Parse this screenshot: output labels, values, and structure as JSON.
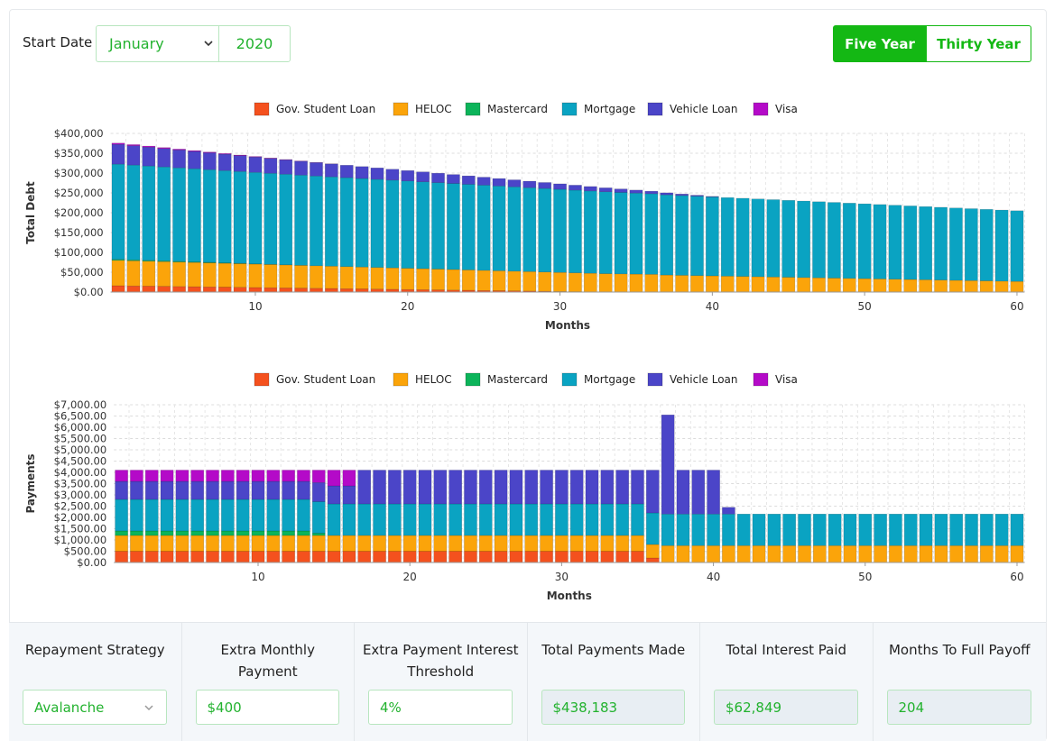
{
  "start_date": {
    "label": "Start Date",
    "month": "January",
    "year": "2020"
  },
  "range_buttons": [
    {
      "label": "Five Year",
      "active": true
    },
    {
      "label": "Thirty Year",
      "active": false
    }
  ],
  "charts": [
    {
      "type": "bar",
      "stacked": true,
      "y_label": "Total Debt",
      "x_label": "Months",
      "x": [
        1,
        2,
        3,
        4,
        5,
        6,
        7,
        8,
        9,
        10,
        11,
        12,
        13,
        14,
        15,
        16,
        17,
        18,
        19,
        20,
        21,
        22,
        23,
        24,
        25,
        26,
        27,
        28,
        29,
        30,
        31,
        32,
        33,
        34,
        35,
        36,
        37,
        38,
        39,
        40,
        41,
        42,
        43,
        44,
        45,
        46,
        47,
        48,
        49,
        50,
        51,
        52,
        53,
        54,
        55,
        56,
        57,
        58,
        59,
        60
      ],
      "xlim": [
        0.5,
        60.5
      ],
      "xticks": [
        10,
        20,
        30,
        40,
        50,
        60
      ],
      "ylim": [
        0,
        400000
      ],
      "yticks": [
        {
          "value": 0,
          "label": "$0.00"
        },
        {
          "value": 50000,
          "label": "$50,000"
        },
        {
          "value": 100000,
          "label": "$100,000"
        },
        {
          "value": 150000,
          "label": "$150,000"
        },
        {
          "value": 200000,
          "label": "$200,000"
        },
        {
          "value": 250000,
          "label": "$250,000"
        },
        {
          "value": 300000,
          "label": "$300,000"
        },
        {
          "value": 350000,
          "label": "$350,000"
        },
        {
          "value": 400000,
          "label": "$400,000"
        }
      ],
      "grid": true,
      "series": [
        {
          "name": "Gov. Student Loan",
          "color": "#f4511e",
          "values": [
            16000,
            15500,
            15000,
            14500,
            14000,
            13500,
            13000,
            12500,
            12000,
            11500,
            11000,
            10500,
            10000,
            9500,
            9000,
            8500,
            8000,
            7500,
            7000,
            6500,
            6000,
            5500,
            5000,
            4500,
            4000,
            3500,
            3000,
            2500,
            2000,
            1500,
            1000,
            500,
            0,
            0,
            0,
            0,
            0,
            0,
            0,
            0,
            0,
            0,
            0,
            0,
            0,
            0,
            0,
            0,
            0,
            0,
            0,
            0,
            0,
            0,
            0,
            0,
            0,
            0,
            0,
            0
          ]
        },
        {
          "name": "HELOC",
          "color": "#fba40a",
          "values": [
            64000,
            63450,
            62900,
            62350,
            61800,
            61250,
            60700,
            60150,
            59600,
            59050,
            58500,
            57950,
            57400,
            56850,
            56300,
            55750,
            55200,
            54650,
            54100,
            53550,
            53000,
            52450,
            51900,
            51350,
            50800,
            50250,
            49700,
            49150,
            48600,
            48050,
            47500,
            46950,
            46400,
            45850,
            45300,
            44750,
            43000,
            42300,
            41600,
            40900,
            40200,
            39500,
            38800,
            38100,
            37400,
            36700,
            36000,
            35300,
            34600,
            33900,
            33200,
            32500,
            31800,
            31100,
            30400,
            29700,
            29000,
            28300,
            27600,
            26900
          ]
        },
        {
          "name": "Mastercard",
          "color": "#0cb45a",
          "values": [
            2500,
            2300,
            2100,
            1900,
            1700,
            1500,
            1300,
            1100,
            900,
            700,
            500,
            300,
            100,
            0,
            0,
            0,
            0,
            0,
            0,
            0,
            0,
            0,
            0,
            0,
            0,
            0,
            0,
            0,
            0,
            0,
            0,
            0,
            0,
            0,
            0,
            0,
            0,
            0,
            0,
            0,
            0,
            0,
            0,
            0,
            0,
            0,
            0,
            0,
            0,
            0,
            0,
            0,
            0,
            0,
            0,
            0,
            0,
            0,
            0,
            0
          ]
        },
        {
          "name": "Mortgage",
          "color": "#0aa3c2",
          "values": [
            240000,
            238950,
            237900,
            236850,
            235800,
            234750,
            233700,
            232650,
            231600,
            230550,
            229500,
            228450,
            227400,
            226350,
            225300,
            224250,
            223200,
            222150,
            221100,
            220050,
            219000,
            217950,
            216900,
            215850,
            214800,
            213750,
            212700,
            211650,
            210600,
            209550,
            208500,
            207450,
            206400,
            205350,
            204300,
            203250,
            202200,
            201150,
            200100,
            199050,
            198000,
            196950,
            195900,
            194850,
            193800,
            192750,
            191700,
            190650,
            189600,
            188550,
            187500,
            186450,
            185400,
            184350,
            183300,
            182250,
            181200,
            180150,
            179100,
            178050
          ]
        },
        {
          "name": "Vehicle Loan",
          "color": "#4b45c8",
          "values": [
            50000,
            48750,
            47500,
            46250,
            45000,
            43750,
            42500,
            41250,
            40000,
            38750,
            37500,
            36250,
            35000,
            33750,
            32500,
            31250,
            30000,
            28750,
            27500,
            26250,
            25000,
            23750,
            22500,
            21250,
            20000,
            18750,
            17500,
            16250,
            15000,
            13750,
            12500,
            11250,
            10000,
            8750,
            7500,
            6250,
            5000,
            3750,
            2500,
            1250,
            0,
            0,
            0,
            0,
            0,
            0,
            0,
            0,
            0,
            0,
            0,
            0,
            0,
            0,
            0,
            0,
            0,
            0,
            0,
            0
          ]
        },
        {
          "name": "Visa",
          "color": "#b40ac8",
          "values": [
            3000,
            2800,
            2600,
            2400,
            2200,
            2000,
            1800,
            1600,
            1400,
            1200,
            1000,
            800,
            600,
            400,
            200,
            0,
            0,
            0,
            0,
            0,
            0,
            0,
            0,
            0,
            0,
            0,
            0,
            0,
            0,
            0,
            0,
            0,
            0,
            0,
            0,
            0,
            0,
            0,
            0,
            0,
            0,
            0,
            0,
            0,
            0,
            0,
            0,
            0,
            0,
            0,
            0,
            0,
            0,
            0,
            0,
            0,
            0,
            0,
            0,
            0
          ]
        }
      ]
    },
    {
      "type": "bar",
      "stacked": true,
      "y_label": "Payments",
      "x_label": "Months",
      "x": [
        1,
        2,
        3,
        4,
        5,
        6,
        7,
        8,
        9,
        10,
        11,
        12,
        13,
        14,
        15,
        16,
        17,
        18,
        19,
        20,
        21,
        22,
        23,
        24,
        25,
        26,
        27,
        28,
        29,
        30,
        31,
        32,
        33,
        34,
        35,
        36,
        37,
        38,
        39,
        40,
        41,
        42,
        43,
        44,
        45,
        46,
        47,
        48,
        49,
        50,
        51,
        52,
        53,
        54,
        55,
        56,
        57,
        58,
        59,
        60
      ],
      "xlim": [
        0.5,
        60.5
      ],
      "xticks": [
        10,
        20,
        30,
        40,
        50,
        60
      ],
      "ylim": [
        0,
        7000
      ],
      "yticks": [
        {
          "value": 0,
          "label": "$0.00"
        },
        {
          "value": 500,
          "label": "$500.00"
        },
        {
          "value": 1000,
          "label": "$1,000.00"
        },
        {
          "value": 1500,
          "label": "$1,500.00"
        },
        {
          "value": 2000,
          "label": "$2,000.00"
        },
        {
          "value": 2500,
          "label": "$2,500.00"
        },
        {
          "value": 3000,
          "label": "$3,000.00"
        },
        {
          "value": 3500,
          "label": "$3,500.00"
        },
        {
          "value": 4000,
          "label": "$4,000.00"
        },
        {
          "value": 4500,
          "label": "$4,500.00"
        },
        {
          "value": 5000,
          "label": "$5,000.00"
        },
        {
          "value": 5500,
          "label": "$5,500.00"
        },
        {
          "value": 6000,
          "label": "$6,000.00"
        },
        {
          "value": 6500,
          "label": "$6,500.00"
        },
        {
          "value": 7000,
          "label": "$7,000.00"
        }
      ],
      "grid": true,
      "series": [
        {
          "name": "Gov. Student Loan",
          "color": "#f4511e",
          "values": [
            500,
            500,
            500,
            500,
            500,
            500,
            500,
            500,
            500,
            500,
            500,
            500,
            500,
            500,
            500,
            500,
            500,
            500,
            500,
            500,
            500,
            500,
            500,
            500,
            500,
            500,
            500,
            500,
            500,
            500,
            500,
            500,
            500,
            500,
            500,
            200,
            0,
            0,
            0,
            0,
            0,
            0,
            0,
            0,
            0,
            0,
            0,
            0,
            0,
            0,
            0,
            0,
            0,
            0,
            0,
            0,
            0,
            0,
            0,
            0
          ]
        },
        {
          "name": "HELOC",
          "color": "#fba40a",
          "values": [
            700,
            700,
            700,
            700,
            700,
            700,
            700,
            700,
            700,
            700,
            700,
            700,
            700,
            700,
            700,
            700,
            700,
            700,
            700,
            700,
            700,
            700,
            700,
            700,
            700,
            700,
            700,
            700,
            700,
            700,
            700,
            700,
            700,
            700,
            700,
            600,
            750,
            750,
            750,
            750,
            750,
            750,
            750,
            750,
            750,
            750,
            750,
            750,
            750,
            750,
            750,
            750,
            750,
            750,
            750,
            750,
            750,
            750,
            750,
            750
          ]
        },
        {
          "name": "Mastercard",
          "color": "#0cb45a",
          "values": [
            200,
            200,
            200,
            200,
            200,
            200,
            200,
            200,
            200,
            200,
            200,
            200,
            200,
            100,
            0,
            0,
            0,
            0,
            0,
            0,
            0,
            0,
            0,
            0,
            0,
            0,
            0,
            0,
            0,
            0,
            0,
            0,
            0,
            0,
            0,
            0,
            0,
            0,
            0,
            0,
            0,
            0,
            0,
            0,
            0,
            0,
            0,
            0,
            0,
            0,
            0,
            0,
            0,
            0,
            0,
            0,
            0,
            0,
            0,
            0
          ]
        },
        {
          "name": "Mortgage",
          "color": "#0aa3c2",
          "values": [
            1400,
            1400,
            1400,
            1400,
            1400,
            1400,
            1400,
            1400,
            1400,
            1400,
            1400,
            1400,
            1400,
            1400,
            1400,
            1400,
            1400,
            1400,
            1400,
            1400,
            1400,
            1400,
            1400,
            1400,
            1400,
            1400,
            1400,
            1400,
            1400,
            1400,
            1400,
            1400,
            1400,
            1400,
            1400,
            1400,
            1400,
            1400,
            1400,
            1400,
            1400,
            1400,
            1400,
            1400,
            1400,
            1400,
            1400,
            1400,
            1400,
            1400,
            1400,
            1400,
            1400,
            1400,
            1400,
            1400,
            1400,
            1400,
            1400,
            1400
          ]
        },
        {
          "name": "Vehicle Loan",
          "color": "#4b45c8",
          "values": [
            800,
            800,
            800,
            800,
            800,
            800,
            800,
            800,
            800,
            800,
            800,
            800,
            800,
            850,
            800,
            800,
            1500,
            1500,
            1500,
            1500,
            1500,
            1500,
            1500,
            1500,
            1500,
            1500,
            1500,
            1500,
            1500,
            1500,
            1500,
            1500,
            1500,
            1500,
            1500,
            1900,
            4400,
            1950,
            1950,
            1950,
            300,
            0,
            0,
            0,
            0,
            0,
            0,
            0,
            0,
            0,
            0,
            0,
            0,
            0,
            0,
            0,
            0,
            0,
            0,
            0
          ]
        },
        {
          "name": "Visa",
          "color": "#b40ac8",
          "values": [
            500,
            500,
            500,
            500,
            500,
            500,
            500,
            500,
            500,
            500,
            500,
            500,
            500,
            550,
            700,
            700,
            0,
            0,
            0,
            0,
            0,
            0,
            0,
            0,
            0,
            0,
            0,
            0,
            0,
            0,
            0,
            0,
            0,
            0,
            0,
            0,
            0,
            0,
            0,
            0,
            0,
            0,
            0,
            0,
            0,
            0,
            0,
            0,
            0,
            0,
            0,
            0,
            0,
            0,
            0,
            0,
            0,
            0,
            0,
            0
          ]
        }
      ]
    }
  ],
  "summary": [
    {
      "label": "Repayment Strategy",
      "value": "Avalanche",
      "kind": "select"
    },
    {
      "label": "Extra Monthly Payment",
      "value": "$400",
      "kind": "input"
    },
    {
      "label": "Extra Payment Interest Threshold",
      "value": "4%",
      "kind": "input"
    },
    {
      "label": "Total Payments Made",
      "value": "$438,183",
      "kind": "readonly"
    },
    {
      "label": "Total Interest Paid",
      "value": "$62,849",
      "kind": "readonly"
    },
    {
      "label": "Months To Full Payoff",
      "value": "204",
      "kind": "readonly"
    }
  ]
}
